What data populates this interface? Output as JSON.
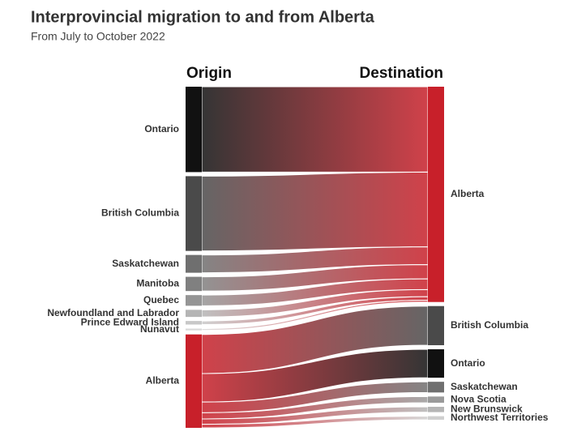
{
  "chart_data": {
    "type": "sankey",
    "title": "Interprovincial migration to and from Alberta",
    "subtitle": "From July to October 2022",
    "origin_header": "Origin",
    "destination_header": "Destination",
    "origins": [
      {
        "name": "Ontario",
        "color": "#111111"
      },
      {
        "name": "British Columbia",
        "color": "#4a4a4a"
      },
      {
        "name": "Saskatchewan",
        "color": "#6f6f6f"
      },
      {
        "name": "Manitoba",
        "color": "#808080"
      },
      {
        "name": "Quebec",
        "color": "#959595"
      },
      {
        "name": "Newfoundland and Labrador",
        "color": "#b5b5b5"
      },
      {
        "name": "Prince Edward Island",
        "color": "#c8c8c8"
      },
      {
        "name": "Nunavut",
        "color": "#dadada"
      },
      {
        "name": "Alberta",
        "color": "#c8202a"
      }
    ],
    "destinations": [
      {
        "name": "Alberta",
        "color": "#c8202a"
      },
      {
        "name": "British Columbia",
        "color": "#4a4a4a"
      },
      {
        "name": "Ontario",
        "color": "#111111"
      },
      {
        "name": "Saskatchewan",
        "color": "#6f6f6f"
      },
      {
        "name": "Nova Scotia",
        "color": "#9a9a9a"
      },
      {
        "name": "New Brunswick",
        "color": "#b5b5b5"
      },
      {
        "name": "Northwest Territories",
        "color": "#cfcfcf"
      }
    ],
    "links": [
      {
        "from": "Ontario",
        "to": "Alberta",
        "value": 96
      },
      {
        "from": "British Columbia",
        "to": "Alberta",
        "value": 84
      },
      {
        "from": "Saskatchewan",
        "to": "Alberta",
        "value": 20
      },
      {
        "from": "Manitoba",
        "to": "Alberta",
        "value": 16
      },
      {
        "from": "Quebec",
        "to": "Alberta",
        "value": 12
      },
      {
        "from": "Newfoundland and Labrador",
        "to": "Alberta",
        "value": 8
      },
      {
        "from": "Prince Edward Island",
        "to": "Alberta",
        "value": 4
      },
      {
        "from": "Nunavut",
        "to": "Alberta",
        "value": 2
      },
      {
        "from": "Alberta",
        "to": "British Columbia",
        "value": 44
      },
      {
        "from": "Alberta",
        "to": "Ontario",
        "value": 32
      },
      {
        "from": "Alberta",
        "to": "Saskatchewan",
        "value": 12
      },
      {
        "from": "Alberta",
        "to": "Nova Scotia",
        "value": 7
      },
      {
        "from": "Alberta",
        "to": "New Brunswick",
        "value": 6
      },
      {
        "from": "Alberta",
        "to": "Northwest Territories",
        "value": 4
      }
    ]
  }
}
